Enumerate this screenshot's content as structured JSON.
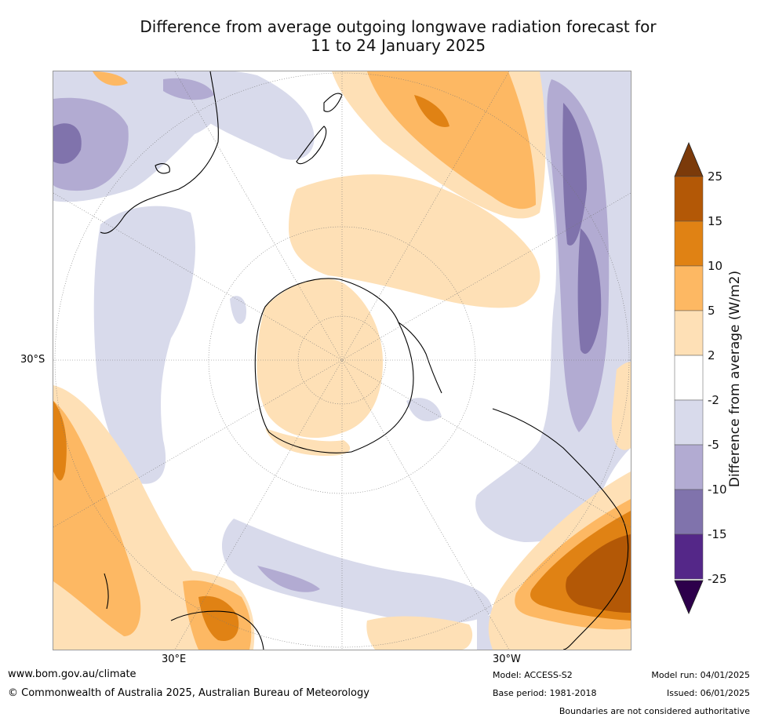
{
  "title": {
    "line1": "Difference from average outgoing longwave radiation forecast for",
    "line2": "11 to 24 January 2025"
  },
  "map": {
    "projection": "south-polar-stereographic",
    "lat_label": "30°S",
    "lon_labels": {
      "east": "30°E",
      "west": "30°W"
    },
    "graticule": "dotted"
  },
  "legend": {
    "title": "Difference from average (W/m2)",
    "levels": [
      "25",
      "15",
      "10",
      "5",
      "2",
      "-2",
      "-5",
      "-10",
      "-15",
      "-25"
    ],
    "colors": {
      "gt25": "#7b3a0a",
      "15_25": "#b35806",
      "10_15": "#e08214",
      "5_10": "#fdb863",
      "2_5": "#fee0b6",
      "neutral": "#ffffff",
      "m5_m2": "#d8daeb",
      "m10_m5": "#b2abd2",
      "m15_m10": "#8073ac",
      "m25_m15": "#542788",
      "lt_m25": "#2d004b"
    }
  },
  "footer": {
    "url": "www.bom.gov.au/climate",
    "copyright": "© Commonwealth of Australia 2025, Australian Bureau of Meteorology",
    "model": "Model: ACCESS-S2",
    "base_period": "Base period: 1981-2018",
    "model_run": "Model run: 04/01/2025",
    "issued": "Issued: 06/01/2025",
    "boundaries_note": "Boundaries are not considered authoritative"
  }
}
